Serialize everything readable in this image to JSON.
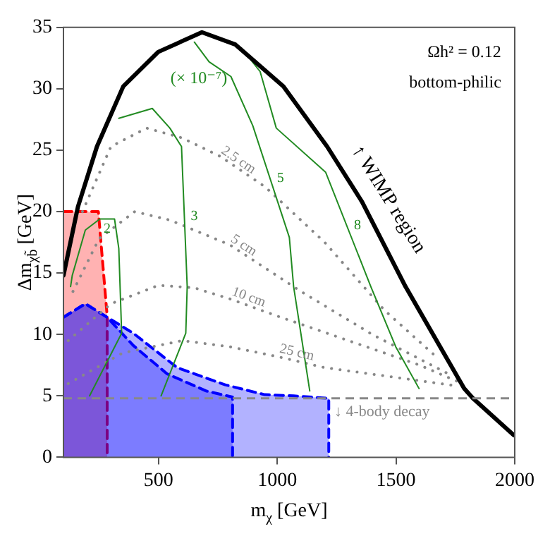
{
  "chart_data": {
    "type": "line",
    "xlabel": "m$_{χ}$ [GeV]",
    "ylabel": "Δm$_{χb̃}$ [GeV]",
    "xlim": [
      100,
      2000
    ],
    "xticks": [
      500,
      1000,
      1500,
      2000
    ],
    "ylim": [
      0,
      35
    ],
    "yticks": [
      0,
      5,
      10,
      15,
      20,
      25,
      30,
      35
    ],
    "grid": false,
    "legend": false,
    "series": [
      {
        "type": "area",
        "color": "#ff0000",
        "line_style": "dashed",
        "x": [
          100,
          247,
          284,
          284
        ],
        "values": [
          20,
          20,
          11.5,
          0
        ]
      },
      {
        "type": "area",
        "color": "#0000ff",
        "line_style": "dashed",
        "x": [
          100,
          192,
          284,
          394,
          536,
          701,
          812,
          812
        ],
        "values": [
          11.4,
          12.5,
          11.4,
          9.1,
          6.8,
          5.4,
          4.9,
          0
        ]
      },
      {
        "type": "area",
        "color": "#0000ff",
        "line_style": "dashed",
        "x": [
          100,
          192,
          284,
          394,
          579,
          781,
          947,
          1069,
          1217,
          1217
        ],
        "values": [
          11.4,
          12.5,
          11.4,
          10.1,
          7.3,
          5.9,
          5.1,
          5.0,
          4.8,
          0
        ]
      },
      {
        "name": "2.5 cm",
        "color": "#888888",
        "line_style": "dotted",
        "x": [
          180,
          300,
          450,
          600,
          760,
          950,
          1200,
          1450,
          1680
        ],
        "values": [
          20,
          25.3,
          26.8,
          26,
          24.5,
          22,
          17.5,
          12,
          8
        ]
      },
      {
        "name": "5 cm",
        "color": "#888888",
        "line_style": "dotted",
        "x": [
          140,
          250,
          400,
          550,
          800,
          1100,
          1400,
          1720
        ],
        "values": [
          13.5,
          17.8,
          20,
          19.3,
          17.3,
          13.5,
          10,
          6.8
        ]
      },
      {
        "name": "10 cm",
        "color": "#888888",
        "line_style": "dotted",
        "x": [
          120,
          300,
          500,
          650,
          800,
          1000,
          1300,
          1600,
          1780
        ],
        "values": [
          9.5,
          12.5,
          14,
          13.8,
          12.9,
          11.5,
          9.5,
          7.5,
          6
        ]
      },
      {
        "name": "25 cm",
        "color": "#888888",
        "line_style": "dotted",
        "x": [
          120,
          350,
          600,
          800,
          1000,
          1200,
          1500,
          1760
        ],
        "values": [
          6,
          8.5,
          9.5,
          9,
          8.2,
          7.3,
          6.5,
          5.8
        ]
      },
      {
        "name": "2",
        "color": "#228b22",
        "line_style": "solid",
        "x": [
          130,
          137,
          192,
          253,
          315,
          333,
          345,
          210
        ],
        "values": [
          13.9,
          14.8,
          18.5,
          19.4,
          19.4,
          17,
          10.1,
          5
        ]
      },
      {
        "name": "3",
        "color": "#228b22",
        "line_style": "solid",
        "x": [
          333,
          474,
          548,
          597,
          621,
          615,
          511
        ],
        "values": [
          27.6,
          28.4,
          26.8,
          25.3,
          13.9,
          10.1,
          5
        ]
      },
      {
        "name": "5",
        "color": "#228b22",
        "line_style": "solid",
        "x": [
          651,
          713,
          805,
          897,
          1051,
          1069,
          1137
        ],
        "values": [
          33.8,
          32.2,
          31,
          27,
          17.9,
          13.9,
          5.4
        ]
      },
      {
        "name": "8",
        "color": "#228b22",
        "line_style": "solid",
        "x": [
          850,
          928,
          996,
          1204,
          1394,
          1499,
          1597
        ],
        "values": [
          33.3,
          31.4,
          26.8,
          23.2,
          13.9,
          9,
          5.6
        ]
      },
      {
        "color": "#000000",
        "line_style": "solid",
        "x": [
          100,
          161,
          241,
          352,
          499,
          683,
          824,
          1026,
          1210,
          1357,
          1540,
          1787,
          1824,
          1996
        ],
        "values": [
          14.8,
          20.4,
          25.3,
          30.2,
          33,
          34.6,
          33.6,
          30.2,
          25.3,
          20.8,
          13.9,
          5.6,
          4.8,
          1.8
        ]
      }
    ],
    "ref_lines": [
      {
        "axis": "y",
        "value": 4.8,
        "label": "↓ 4-body decay",
        "color": "#888888",
        "line_style": "dashed"
      }
    ],
    "annotations": [
      "Ωh² = 0.12",
      "bottom-philic",
      "(× 10⁻⁷)",
      "↑ WIMP region"
    ]
  }
}
